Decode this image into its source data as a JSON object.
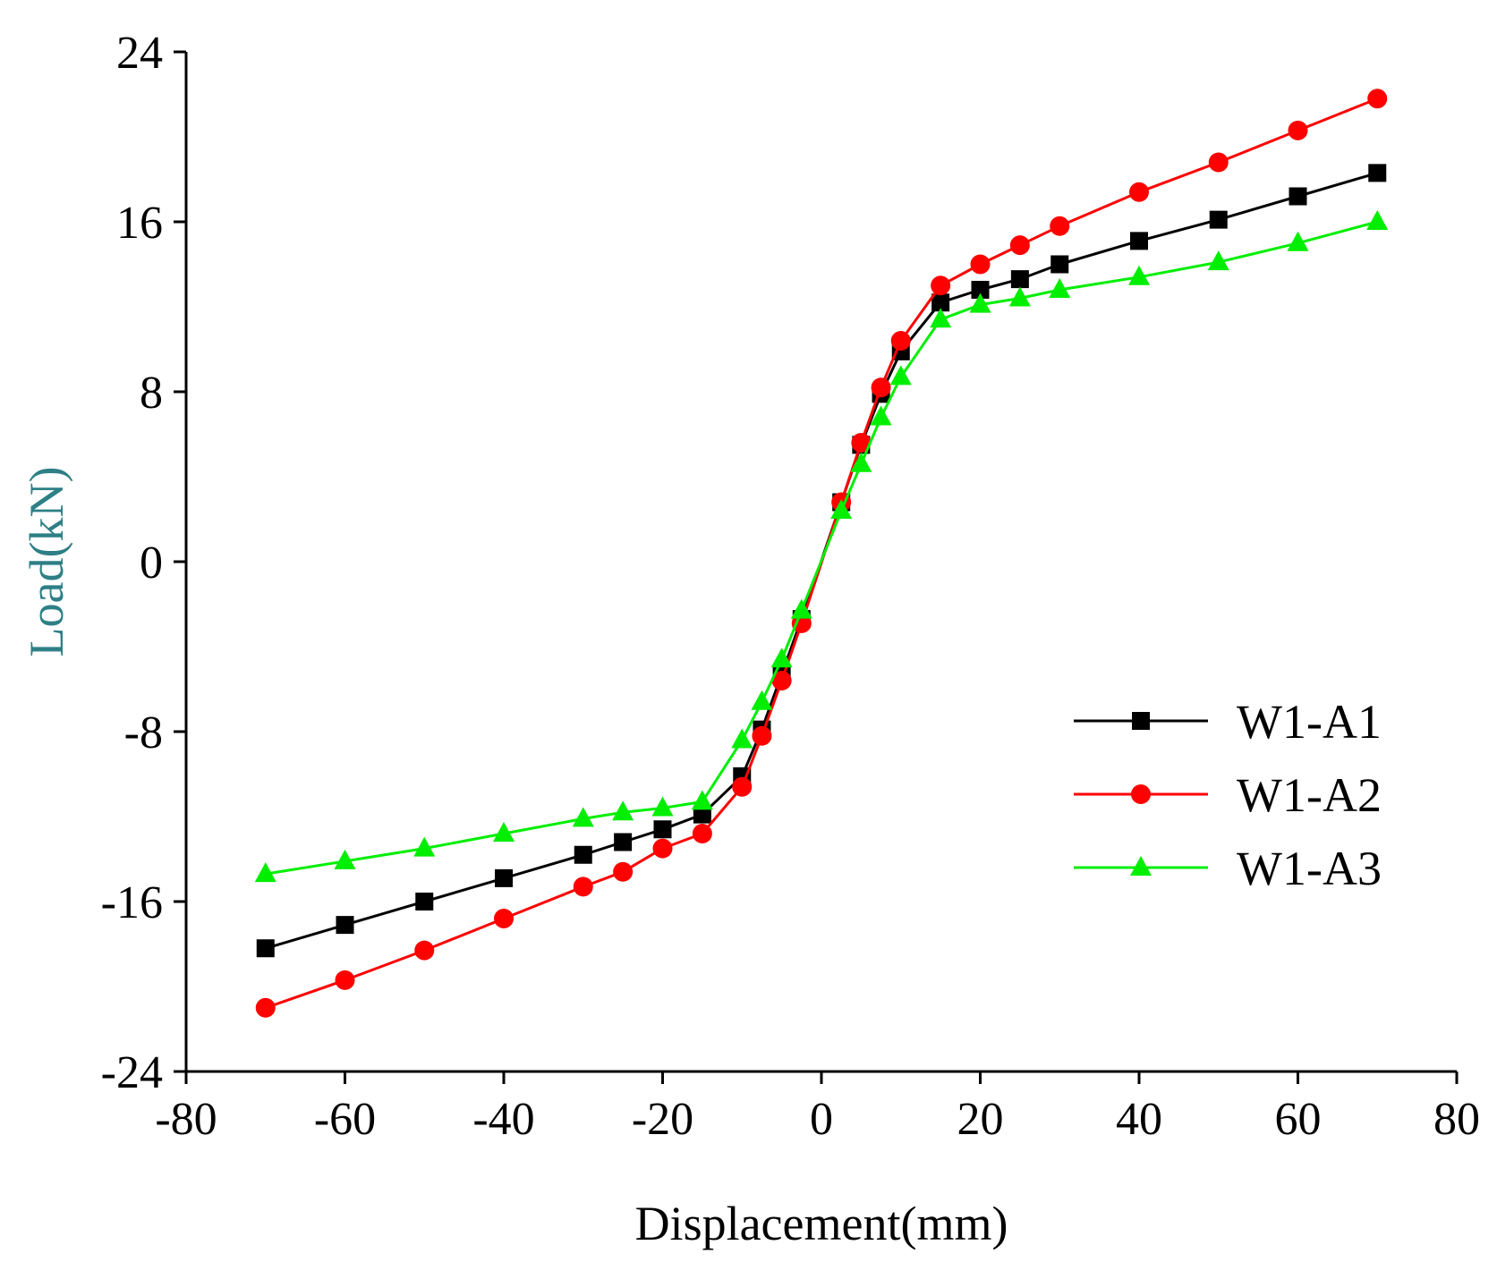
{
  "chart_data": {
    "type": "line",
    "title": "",
    "xlabel": "Displacement(mm)",
    "ylabel": "Load(kN)",
    "xlim": [
      -80,
      80
    ],
    "ylim": [
      -24,
      24
    ],
    "x_ticks": [
      -80,
      -60,
      -40,
      -20,
      0,
      20,
      40,
      60,
      80
    ],
    "y_ticks": [
      -24,
      -16,
      -8,
      0,
      8,
      16,
      24
    ],
    "x_tick_labels": [
      "-80",
      "-60",
      "-40",
      "-20",
      "0",
      "20",
      "40",
      "60",
      "80"
    ],
    "y_tick_labels": [
      "-24",
      "-16",
      "-8",
      "0",
      "8",
      "16",
      "24"
    ],
    "legend_position": "right",
    "grid": false,
    "series": [
      {
        "name": "W1-A1",
        "color": "#000000",
        "marker": "square",
        "x": [
          -70,
          -60,
          -50,
          -40,
          -30,
          -25,
          -20,
          -15,
          -10,
          -7.5,
          -5,
          -2.5,
          2.5,
          5,
          7.5,
          10,
          15,
          20,
          25,
          30,
          40,
          50,
          60,
          70
        ],
        "y": [
          -18.2,
          -17.1,
          -16.0,
          -14.9,
          -13.8,
          -13.2,
          -12.6,
          -11.9,
          -10.1,
          -7.9,
          -5.3,
          -2.7,
          2.8,
          5.5,
          7.9,
          9.9,
          12.2,
          12.8,
          13.3,
          14.0,
          15.1,
          16.1,
          17.2,
          18.3
        ]
      },
      {
        "name": "W1-A2",
        "color": "#ff0000",
        "marker": "circle",
        "x": [
          -70,
          -60,
          -50,
          -40,
          -30,
          -25,
          -20,
          -15,
          -10,
          -7.5,
          -5,
          -2.5,
          2.5,
          5,
          7.5,
          10,
          15,
          20,
          25,
          30,
          40,
          50,
          60,
          70
        ],
        "y": [
          -21.0,
          -19.7,
          -18.3,
          -16.8,
          -15.3,
          -14.6,
          -13.5,
          -12.8,
          -10.6,
          -8.2,
          -5.6,
          -2.9,
          2.8,
          5.6,
          8.2,
          10.4,
          13.0,
          14.0,
          14.9,
          15.8,
          17.4,
          18.8,
          20.3,
          21.8
        ]
      },
      {
        "name": "W1-A3",
        "color": "#00ee00",
        "marker": "triangle",
        "x": [
          -70,
          -60,
          -50,
          -40,
          -30,
          -25,
          -20,
          -15,
          -10,
          -7.5,
          -5,
          -2.5,
          2.5,
          5,
          7.5,
          10,
          15,
          20,
          25,
          30,
          40,
          50,
          60,
          70
        ],
        "y": [
          -14.7,
          -14.1,
          -13.5,
          -12.8,
          -12.1,
          -11.8,
          -11.6,
          -11.3,
          -8.4,
          -6.6,
          -4.6,
          -2.3,
          2.4,
          4.6,
          6.8,
          8.7,
          11.4,
          12.1,
          12.4,
          12.8,
          13.4,
          14.1,
          15.0,
          16.0
        ]
      }
    ]
  },
  "colors": {
    "axis": "#000000",
    "ylabel_color": "#2e7f86",
    "xlabel_color": "#000000"
  }
}
